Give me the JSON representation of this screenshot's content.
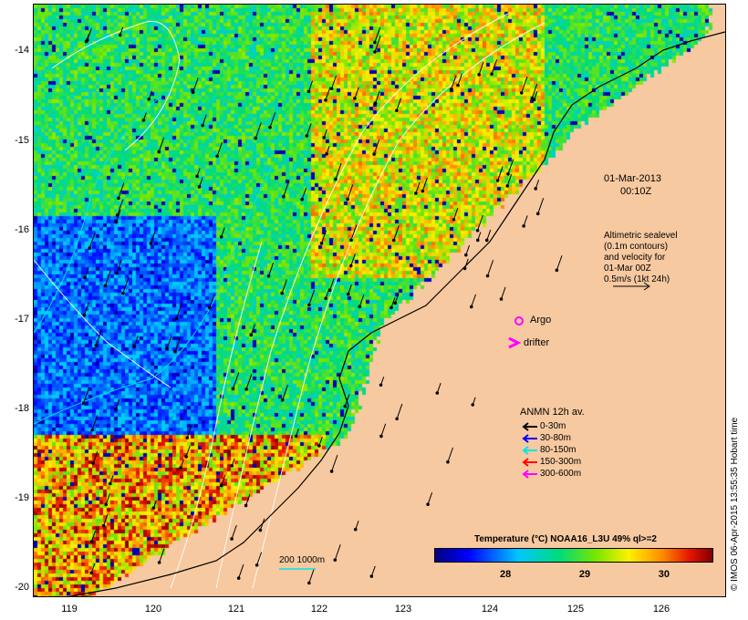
{
  "map": {
    "date": "01-Mar-2013",
    "time": "00:10Z",
    "altimetry_note": [
      "Altimetric sealevel",
      "(0.1m contours)",
      "and velocity for",
      "01-Mar 00Z",
      "0.5m/s (1kt 24h)"
    ],
    "argo_label": "Argo",
    "drifter_label": "drifter",
    "anmn_title": "ANMN 12h av.",
    "anmn_legend": [
      {
        "label": "0-30m",
        "color": "#000000"
      },
      {
        "label": "30-80m",
        "color": "#0000ff"
      },
      {
        "label": "80-150m",
        "color": "#00e5e5"
      },
      {
        "label": "150-300m",
        "color": "#ff0000"
      },
      {
        "label": "300-600m",
        "color": "#ff00ff"
      }
    ],
    "colorbar_title": "Temperature (°C) NOAA16_L3U 49% ql>=2",
    "colorbar_ticks": [
      "28",
      "29",
      "30"
    ],
    "colorbar_range": [
      27.1,
      30.6
    ],
    "isobath_label": "200  1000m",
    "credit": "© IMOS 06-Apr-2015 13:55:35 Hobart time",
    "lat_ticks": [
      "-14",
      "-15",
      "-16",
      "-17",
      "-18",
      "-19",
      "-20"
    ],
    "lon_ticks": [
      "119",
      "120",
      "121",
      "122",
      "123",
      "124",
      "125",
      "126"
    ],
    "colors": {
      "land": "#f7c9a0",
      "argo": "#ff00ff",
      "drifter": "#ff00ff",
      "isobath": "#00e5e5"
    }
  }
}
